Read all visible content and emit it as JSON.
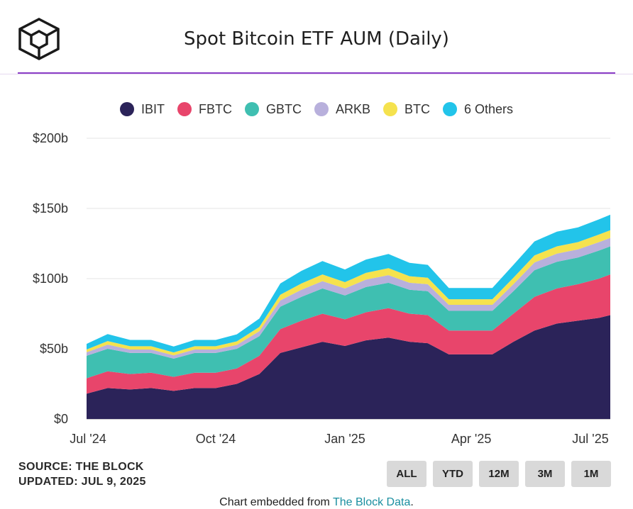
{
  "header": {
    "title": "Spot Bitcoin ETF AUM (Daily)",
    "logo": "the-block-cube-logo"
  },
  "legend": [
    {
      "label": "IBIT",
      "color": "#2b2359"
    },
    {
      "label": "FBTC",
      "color": "#e8456b"
    },
    {
      "label": "GBTC",
      "color": "#3fbfb1"
    },
    {
      "label": "ARKB",
      "color": "#b8b0dc"
    },
    {
      "label": "BTC",
      "color": "#f5e24e"
    },
    {
      "label": "6 Others",
      "color": "#22c4ea"
    }
  ],
  "footer": {
    "source": "SOURCE: THE BLOCK",
    "updated": "UPDATED: JUL 9, 2025",
    "buttons": [
      "ALL",
      "YTD",
      "12M",
      "3M",
      "1M"
    ],
    "embed_prefix": "Chart embedded from ",
    "embed_link": "The Block Data",
    "embed_suffix": "."
  },
  "chart_data": {
    "type": "area",
    "stacked": true,
    "title": "Spot Bitcoin ETF AUM (Daily)",
    "x": [
      "2024-07-01",
      "2024-07-16",
      "2024-08-01",
      "2024-08-16",
      "2024-09-01",
      "2024-09-16",
      "2024-10-01",
      "2024-10-16",
      "2024-11-01",
      "2024-11-16",
      "2024-12-01",
      "2024-12-16",
      "2025-01-01",
      "2025-01-16",
      "2025-02-01",
      "2025-02-16",
      "2025-03-01",
      "2025-03-16",
      "2025-04-01",
      "2025-04-16",
      "2025-05-01",
      "2025-05-16",
      "2025-06-01",
      "2025-06-16",
      "2025-07-01",
      "2025-07-09"
    ],
    "x_ticks": [
      "Jul '24",
      "Oct '24",
      "Jan '25",
      "Apr '25",
      "Jul '25"
    ],
    "y_ticks": [
      "$0",
      "$50b",
      "$100b",
      "$150b",
      "$200b"
    ],
    "ylim": [
      0,
      200
    ],
    "y_unit": "billions USD",
    "grid": true,
    "legend_position": "top",
    "series": [
      {
        "name": "IBIT",
        "color": "#2b2359",
        "values": [
          18,
          22,
          21,
          22,
          20,
          22,
          22,
          25,
          32,
          47,
          51,
          55,
          52,
          56,
          58,
          55,
          54,
          46,
          46,
          46,
          55,
          63,
          68,
          70,
          72,
          74
        ]
      },
      {
        "name": "FBTC",
        "color": "#e8456b",
        "values": [
          11,
          12,
          11,
          11,
          10,
          11,
          11,
          11,
          13,
          17,
          19,
          20,
          19,
          20,
          21,
          20,
          20,
          17,
          17,
          17,
          20,
          24,
          25,
          26,
          28,
          29
        ]
      },
      {
        "name": "GBTC",
        "color": "#3fbfb1",
        "values": [
          16,
          16,
          15,
          14,
          13,
          14,
          14,
          14,
          14,
          16,
          17,
          18,
          17,
          18,
          18,
          17,
          17,
          14,
          14,
          14,
          16,
          19,
          19,
          19,
          20,
          20
        ]
      },
      {
        "name": "ARKB",
        "color": "#b8b0dc",
        "values": [
          2.5,
          3,
          2.5,
          2.5,
          2.3,
          2.5,
          2.5,
          2.8,
          3.5,
          4.5,
          5,
          5.2,
          5,
          5.3,
          5.5,
          5,
          5,
          4.3,
          4.3,
          4.3,
          5,
          5.5,
          5.8,
          5.8,
          6,
          6
        ]
      },
      {
        "name": "BTC",
        "color": "#f5e24e",
        "values": [
          2,
          2.5,
          2.3,
          2.3,
          2.1,
          2.3,
          2.3,
          2.5,
          3,
          4,
          4.5,
          4.8,
          4.5,
          4.8,
          5,
          4.7,
          4.6,
          4,
          4,
          4,
          4.6,
          5,
          5.2,
          5.2,
          5.4,
          5.5
        ]
      },
      {
        "name": "6 Others",
        "color": "#22c4ea",
        "values": [
          4,
          5,
          4.5,
          4.5,
          4.2,
          4.5,
          4.5,
          5,
          6,
          8,
          9,
          9.5,
          9,
          9.5,
          10,
          9.5,
          9.2,
          8,
          8,
          8,
          9.2,
          10,
          10.5,
          10.5,
          10.8,
          11
        ]
      }
    ]
  }
}
